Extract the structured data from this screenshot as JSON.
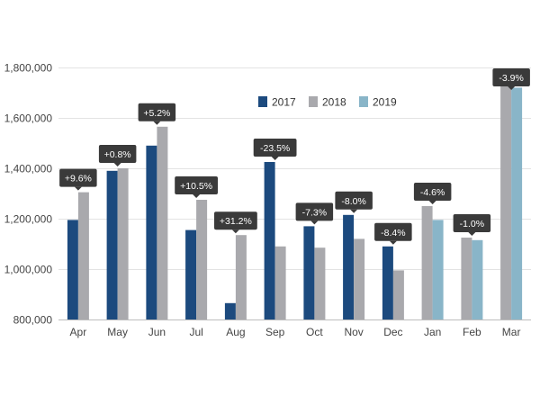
{
  "chart_data": {
    "type": "bar",
    "title": "",
    "xlabel": "",
    "ylabel": "",
    "ylim": [
      800000,
      1800000
    ],
    "yticks": [
      800000,
      1000000,
      1200000,
      1400000,
      1600000,
      1800000
    ],
    "ytick_labels": [
      "800,000",
      "1,000,000",
      "1,200,000",
      "1,400,000",
      "1,600,000",
      "1,800,000"
    ],
    "categories": [
      "Apr",
      "May",
      "Jun",
      "Jul",
      "Aug",
      "Sep",
      "Oct",
      "Nov",
      "Dec",
      "Jan",
      "Feb",
      "Mar"
    ],
    "series": [
      {
        "name": "2017",
        "color": "#1c4a7e",
        "values": [
          1195000,
          1390000,
          1490000,
          1155000,
          865000,
          1425000,
          1170000,
          1215000,
          1090000,
          null,
          null,
          null
        ]
      },
      {
        "name": "2018",
        "color": "#a9a9ad",
        "values": [
          1305000,
          1400000,
          1565000,
          1275000,
          1135000,
          1090000,
          1085000,
          1120000,
          995000,
          1250000,
          1125000,
          1795000
        ]
      },
      {
        "name": "2019",
        "color": "#89b5c8",
        "values": [
          null,
          null,
          null,
          null,
          null,
          null,
          null,
          null,
          null,
          1195000,
          1115000,
          1720000
        ]
      }
    ],
    "annotations": [
      "+9.6%",
      "+0.8%",
      "+5.2%",
      "+10.5%",
      "+31.2%",
      "-23.5%",
      "-7.3%",
      "-8.0%",
      "-8.4%",
      "-4.6%",
      "-1.0%",
      "-3.9%"
    ],
    "legend_position": "top-right",
    "grid": true
  }
}
